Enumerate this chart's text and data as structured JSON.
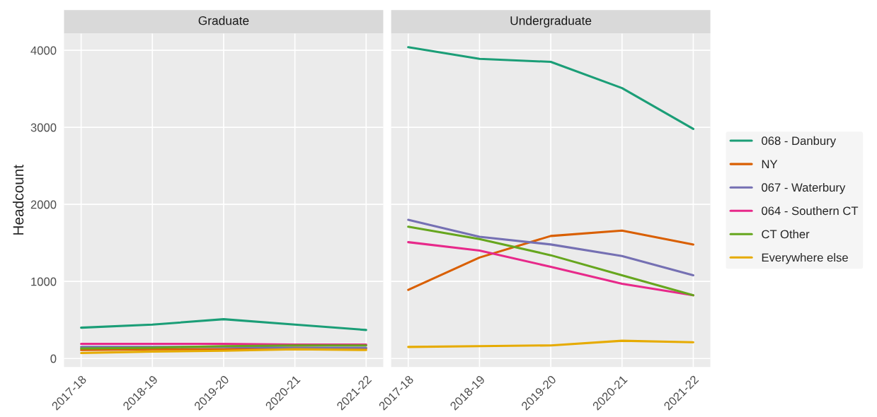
{
  "chart_data": [
    {
      "type": "line",
      "title": "Graduate",
      "ylabel": "Headcount",
      "categories": [
        "2017-18",
        "2018-19",
        "2019-20",
        "2020-21",
        "2021-22"
      ],
      "ylim": [
        -110,
        4220
      ],
      "yticks": [
        0,
        1000,
        2000,
        3000,
        4000
      ],
      "grid": true,
      "legend": false,
      "series": [
        {
          "color": "#1b9e77",
          "values": [
            400,
            440,
            510,
            440,
            370
          ]
        },
        {
          "color": "#d95f02",
          "values": [
            110,
            120,
            120,
            140,
            130
          ]
        },
        {
          "color": "#7570b3",
          "values": [
            150,
            150,
            150,
            140,
            140
          ]
        },
        {
          "color": "#e7298a",
          "values": [
            190,
            190,
            190,
            180,
            180
          ]
        },
        {
          "color": "#66a61e",
          "values": [
            130,
            140,
            160,
            170,
            170
          ]
        },
        {
          "color": "#e6ab02",
          "values": [
            70,
            90,
            100,
            120,
            110
          ]
        }
      ]
    },
    {
      "type": "line",
      "title": "Undergraduate",
      "categories": [
        "2017-18",
        "2018-19",
        "2019-20",
        "2020-21",
        "2021-22"
      ],
      "ylim": [
        -110,
        4220
      ],
      "yticks": [
        0,
        1000,
        2000,
        3000,
        4000
      ],
      "tick_labels": "x",
      "grid": true,
      "legend": "right",
      "series": [
        {
          "name": "068 - Danbury",
          "color": "#1b9e77",
          "values": [
            4040,
            3890,
            3850,
            3510,
            2980
          ]
        },
        {
          "name": "NY",
          "color": "#d95f02",
          "values": [
            890,
            1310,
            1590,
            1660,
            1480
          ]
        },
        {
          "name": "067 - Waterbury",
          "color": "#7570b3",
          "values": [
            1800,
            1580,
            1480,
            1330,
            1080
          ]
        },
        {
          "name": "064 - Southern CT",
          "color": "#e7298a",
          "values": [
            1510,
            1400,
            1190,
            970,
            820
          ]
        },
        {
          "name": "CT Other",
          "color": "#66a61e",
          "values": [
            1710,
            1550,
            1340,
            1080,
            820
          ]
        },
        {
          "name": "Everywhere else",
          "color": "#e6ab02",
          "values": [
            150,
            160,
            170,
            230,
            210
          ]
        }
      ]
    }
  ]
}
